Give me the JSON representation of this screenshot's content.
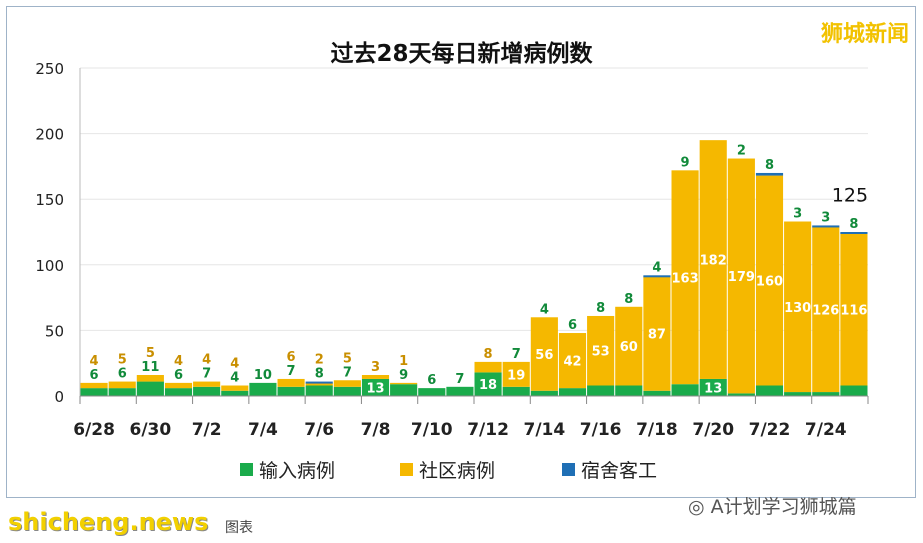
{
  "brand": "狮城新闻",
  "watermark": "shicheng.news",
  "wechat": "A计划学习狮城篇",
  "footer": "图表",
  "colors": {
    "import": "#1aab4b",
    "community": "#f5b800",
    "dorm": "#1f6fb5"
  },
  "chart_data": {
    "type": "bar",
    "stacked": true,
    "title": "过去28天每日新增病例数",
    "ylim": [
      0,
      250
    ],
    "yticks": [
      0,
      50,
      100,
      150,
      200,
      250
    ],
    "categories": [
      "6/28",
      "6/29",
      "6/30",
      "7/1",
      "7/2",
      "7/3",
      "7/4",
      "7/5",
      "7/6",
      "7/7",
      "7/8",
      "7/9",
      "7/10",
      "7/11",
      "7/12",
      "7/13",
      "7/14",
      "7/15",
      "7/16",
      "7/17",
      "7/18",
      "7/19",
      "7/20",
      "7/21",
      "7/22",
      "7/23",
      "7/24",
      "7/25"
    ],
    "xtick_labels": [
      "6/28",
      "6/30",
      "7/2",
      "7/4",
      "7/6",
      "7/8",
      "7/10",
      "7/12",
      "7/14",
      "7/16",
      "7/18",
      "7/20",
      "7/22",
      "7/24"
    ],
    "series": [
      {
        "name": "输入病例",
        "values": [
          6,
          6,
          11,
          6,
          7,
          4,
          10,
          7,
          8,
          7,
          13,
          9,
          6,
          7,
          18,
          7,
          4,
          6,
          8,
          8,
          4,
          9,
          13,
          2,
          8,
          3,
          3,
          8
        ]
      },
      {
        "name": "社区病例",
        "values": [
          4,
          5,
          5,
          4,
          4,
          4,
          0,
          6,
          2,
          5,
          3,
          1,
          0,
          0,
          8,
          19,
          56,
          42,
          53,
          60,
          87,
          163,
          182,
          179,
          160,
          130,
          126,
          116
        ]
      },
      {
        "name": "宿舍客工",
        "values": [
          0,
          0,
          0,
          0,
          0,
          0,
          0,
          0,
          1,
          0,
          0,
          0,
          0,
          0,
          0,
          0,
          0,
          0,
          0,
          0,
          1,
          0,
          0,
          0,
          2,
          0,
          1,
          1
        ]
      }
    ],
    "annotation": "125",
    "legend": "bottom"
  }
}
